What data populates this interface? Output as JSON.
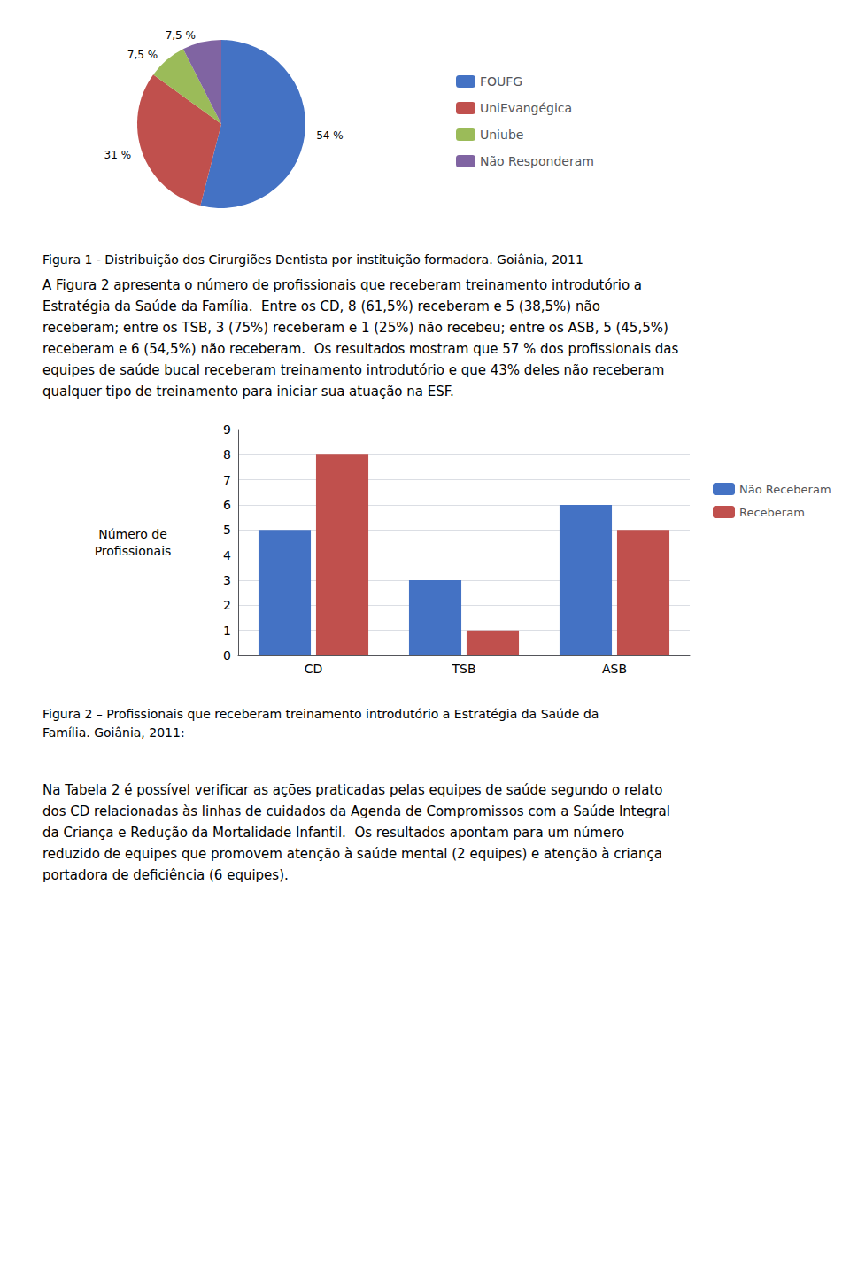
{
  "chart_data": [
    {
      "type": "pie",
      "categories": [
        "FOUFG",
        "UniEvangégica",
        "Uniube",
        "Não Responderam"
      ],
      "values": [
        54,
        31,
        7.5,
        7.5
      ],
      "value_labels": [
        "54 %",
        "31 %",
        "7,5 %",
        "7,5 %"
      ],
      "colors": [
        "#4472C4",
        "#C0504D",
        "#9BBB59",
        "#8064A2"
      ],
      "data_labels": true,
      "legend": "right",
      "annotations": [
        "Figura 1 - Distribuição dos Cirurgiões Dentista por instituição formadora. Goiânia, 2011",
        "A Figura 2 apresenta o número de profissionais que receberam treinamento introdutório a\nEstratégia da Saúde da Família.  Entre os CD, 8 (61,5%) receberam e 5 (38,5%) não\nreceberam; entre os TSB, 3 (75%) receberam e 1 (25%) não recebeu; entre os ASB, 5 (45,5%)\nreceberam e 6 (54,5%) não receberam.  Os resultados mostram que 57 % dos profissionais das\nequipes de saúde bucal receberam treinamento introdutório e que 43% deles não receberam\nqualquer tipo de treinamento para iniciar sua atuação na ESF."
      ]
    },
    {
      "type": "bar",
      "categories": [
        "CD",
        "TSB",
        "ASB"
      ],
      "series": [
        {
          "name": "Não Receberam",
          "color": "#4472C4",
          "values": [
            5,
            3,
            6
          ]
        },
        {
          "name": "Receberam",
          "color": "#C0504D",
          "values": [
            8,
            1,
            5
          ]
        }
      ],
      "ylabel": "Número de\nProfissionais",
      "ylim": [
        0,
        9
      ],
      "yticks": [
        0,
        1,
        2,
        3,
        4,
        5,
        6,
        7,
        8,
        9
      ],
      "grid": true,
      "legend": "right",
      "annotations": [
        "Figura 2 – Profissionais que receberam treinamento introdutório a Estratégia da Saúde da\nFamília. Goiânia, 2011:",
        "Na Tabela 2 é possível verificar as ações praticadas pelas equipes de saúde segundo o relato\ndos CD relacionadas às linhas de cuidados da Agenda de Compromissos com a Saúde Integral\nda Criança e Redução da Mortalidade Infantil.  Os resultados apontam para um número\nreduzido de equipes que promovem atenção à saúde mental (2 equipes) e atenção à criança\nportadora de deficiência (6 equipes)."
      ]
    }
  ]
}
